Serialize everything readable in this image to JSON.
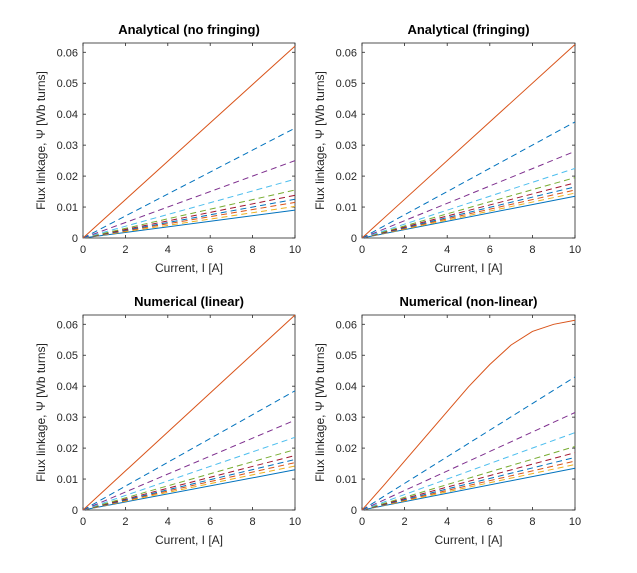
{
  "chart_data": [
    {
      "type": "line",
      "title": "Analytical (no fringing)",
      "xlabel": "Current, I [A]",
      "ylabel": "Flux linkage, Ψ [Wb turns]",
      "xlim": [
        0,
        10
      ],
      "ylim": [
        0,
        0.063
      ],
      "xticks": [
        "0",
        "2",
        "4",
        "6",
        "8",
        "10"
      ],
      "yticks": [
        "0",
        "0.01",
        "0.02",
        "0.03",
        "0.04",
        "0.05",
        "0.06"
      ],
      "grid": false,
      "series": [
        {
          "style": "solid",
          "color": "#0072BD",
          "x": [
            0,
            10
          ],
          "y": [
            0,
            0.009
          ]
        },
        {
          "style": "dashed",
          "color": "#EDB120",
          "x": [
            0,
            10
          ],
          "y": [
            0,
            0.0102
          ]
        },
        {
          "style": "dashed",
          "color": "#D95319",
          "x": [
            0,
            10
          ],
          "y": [
            0,
            0.0115
          ]
        },
        {
          "style": "dashed",
          "color": "#0072BD",
          "x": [
            0,
            10
          ],
          "y": [
            0,
            0.0125
          ]
        },
        {
          "style": "dashed",
          "color": "#A2142F",
          "x": [
            0,
            10
          ],
          "y": [
            0,
            0.0138
          ]
        },
        {
          "style": "dashed",
          "color": "#77AC30",
          "x": [
            0,
            10
          ],
          "y": [
            0,
            0.0155
          ]
        },
        {
          "style": "dashed",
          "color": "#4DBEEE",
          "x": [
            0,
            10
          ],
          "y": [
            0,
            0.019
          ]
        },
        {
          "style": "dashed",
          "color": "#7E2F8E",
          "x": [
            0,
            10
          ],
          "y": [
            0,
            0.025
          ]
        },
        {
          "style": "dashed",
          "color": "#0072BD",
          "x": [
            0,
            10
          ],
          "y": [
            0,
            0.0355
          ]
        },
        {
          "style": "solid",
          "color": "#D95319",
          "x": [
            0,
            10
          ],
          "y": [
            0,
            0.062
          ]
        }
      ]
    },
    {
      "type": "line",
      "title": "Analytical (fringing)",
      "xlabel": "Current, I [A]",
      "ylabel": "Flux linkage, Ψ [Wb turns]",
      "xlim": [
        0,
        10
      ],
      "ylim": [
        0,
        0.063
      ],
      "xticks": [
        "0",
        "2",
        "4",
        "6",
        "8",
        "10"
      ],
      "yticks": [
        "0",
        "0.01",
        "0.02",
        "0.03",
        "0.04",
        "0.05",
        "0.06"
      ],
      "grid": false,
      "series": [
        {
          "style": "solid",
          "color": "#0072BD",
          "x": [
            0,
            10
          ],
          "y": [
            0,
            0.0135
          ]
        },
        {
          "style": "dashed",
          "color": "#EDB120",
          "x": [
            0,
            10
          ],
          "y": [
            0,
            0.0145
          ]
        },
        {
          "style": "dashed",
          "color": "#D95319",
          "x": [
            0,
            10
          ],
          "y": [
            0,
            0.0155
          ]
        },
        {
          "style": "dashed",
          "color": "#0072BD",
          "x": [
            0,
            10
          ],
          "y": [
            0,
            0.0165
          ]
        },
        {
          "style": "dashed",
          "color": "#A2142F",
          "x": [
            0,
            10
          ],
          "y": [
            0,
            0.0178
          ]
        },
        {
          "style": "dashed",
          "color": "#77AC30",
          "x": [
            0,
            10
          ],
          "y": [
            0,
            0.0195
          ]
        },
        {
          "style": "dashed",
          "color": "#4DBEEE",
          "x": [
            0,
            10
          ],
          "y": [
            0,
            0.0225
          ]
        },
        {
          "style": "dashed",
          "color": "#7E2F8E",
          "x": [
            0,
            10
          ],
          "y": [
            0,
            0.028
          ]
        },
        {
          "style": "dashed",
          "color": "#0072BD",
          "x": [
            0,
            10
          ],
          "y": [
            0,
            0.0375
          ]
        },
        {
          "style": "solid",
          "color": "#D95319",
          "x": [
            0,
            10
          ],
          "y": [
            0,
            0.0625
          ]
        }
      ]
    },
    {
      "type": "line",
      "title": "Numerical (linear)",
      "xlabel": "Current, I [A]",
      "ylabel": "Flux linkage, Ψ [Wb turns]",
      "xlim": [
        0,
        10
      ],
      "ylim": [
        0,
        0.063
      ],
      "xticks": [
        "0",
        "2",
        "4",
        "6",
        "8",
        "10"
      ],
      "yticks": [
        "0",
        "0.01",
        "0.02",
        "0.03",
        "0.04",
        "0.05",
        "0.06"
      ],
      "grid": false,
      "series": [
        {
          "style": "solid",
          "color": "#0072BD",
          "x": [
            0,
            10
          ],
          "y": [
            0,
            0.013
          ]
        },
        {
          "style": "dashed",
          "color": "#EDB120",
          "x": [
            0,
            10
          ],
          "y": [
            0,
            0.0142
          ]
        },
        {
          "style": "dashed",
          "color": "#D95319",
          "x": [
            0,
            10
          ],
          "y": [
            0,
            0.0153
          ]
        },
        {
          "style": "dashed",
          "color": "#0072BD",
          "x": [
            0,
            10
          ],
          "y": [
            0,
            0.0163
          ]
        },
        {
          "style": "dashed",
          "color": "#A2142F",
          "x": [
            0,
            10
          ],
          "y": [
            0,
            0.0176
          ]
        },
        {
          "style": "dashed",
          "color": "#77AC30",
          "x": [
            0,
            10
          ],
          "y": [
            0,
            0.0195
          ]
        },
        {
          "style": "dashed",
          "color": "#4DBEEE",
          "x": [
            0,
            10
          ],
          "y": [
            0,
            0.0235
          ]
        },
        {
          "style": "dashed",
          "color": "#7E2F8E",
          "x": [
            0,
            10
          ],
          "y": [
            0,
            0.029
          ]
        },
        {
          "style": "dashed",
          "color": "#0072BD",
          "x": [
            0,
            10
          ],
          "y": [
            0,
            0.0385
          ]
        },
        {
          "style": "solid",
          "color": "#D95319",
          "x": [
            0,
            10
          ],
          "y": [
            0,
            0.063
          ]
        }
      ]
    },
    {
      "type": "line",
      "title": "Numerical (non-linear)",
      "xlabel": "Current, I [A]",
      "ylabel": "Flux linkage, Ψ [Wb turns]",
      "xlim": [
        0,
        10
      ],
      "ylim": [
        0,
        0.063
      ],
      "xticks": [
        "0",
        "2",
        "4",
        "6",
        "8",
        "10"
      ],
      "yticks": [
        "0",
        "0.01",
        "0.02",
        "0.03",
        "0.04",
        "0.05",
        "0.06"
      ],
      "grid": false,
      "series": [
        {
          "style": "solid",
          "color": "#0072BD",
          "x": [
            0,
            10
          ],
          "y": [
            0,
            0.0135
          ]
        },
        {
          "style": "dashed",
          "color": "#EDB120",
          "x": [
            0,
            10
          ],
          "y": [
            0,
            0.0147
          ]
        },
        {
          "style": "dashed",
          "color": "#D95319",
          "x": [
            0,
            10
          ],
          "y": [
            0,
            0.0158
          ]
        },
        {
          "style": "dashed",
          "color": "#0072BD",
          "x": [
            0,
            10
          ],
          "y": [
            0,
            0.017
          ]
        },
        {
          "style": "dashed",
          "color": "#A2142F",
          "x": [
            0,
            10
          ],
          "y": [
            0,
            0.0185
          ]
        },
        {
          "style": "dashed",
          "color": "#77AC30",
          "x": [
            0,
            10
          ],
          "y": [
            0,
            0.0205
          ]
        },
        {
          "style": "dashed",
          "color": "#4DBEEE",
          "x": [
            0,
            10
          ],
          "y": [
            0,
            0.025
          ]
        },
        {
          "style": "dashed",
          "color": "#7E2F8E",
          "x": [
            0,
            10
          ],
          "y": [
            0,
            0.0315
          ]
        },
        {
          "style": "dashed",
          "color": "#0072BD",
          "x": [
            0,
            10
          ],
          "y": [
            0,
            0.043
          ]
        },
        {
          "style": "solid",
          "color": "#D95319",
          "x": [
            0,
            1,
            2,
            3,
            4,
            5,
            6,
            7,
            8,
            9,
            10
          ],
          "y": [
            0,
            0.0078,
            0.0158,
            0.0238,
            0.0318,
            0.0398,
            0.047,
            0.0533,
            0.0577,
            0.06,
            0.0613
          ]
        }
      ]
    }
  ]
}
